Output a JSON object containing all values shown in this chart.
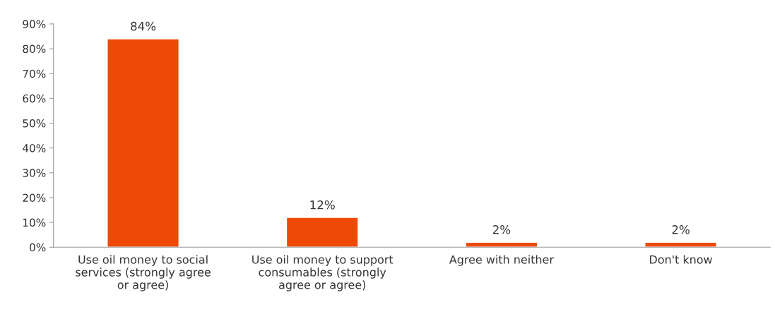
{
  "chart_data": {
    "type": "bar",
    "categories": [
      "Use oil money to social services (strongly agree or agree)",
      "Use oil money to support consumables (strongly agree or agree)",
      "Agree with neither",
      "Don't know"
    ],
    "values": [
      84,
      12,
      2,
      2
    ],
    "value_labels": [
      "84%",
      "12%",
      "2%",
      "2%"
    ],
    "color": "#ee4a06",
    "ylim": [
      0,
      90
    ],
    "yticks": [
      {
        "value": 0,
        "label": "0%"
      },
      {
        "value": 10,
        "label": "10%"
      },
      {
        "value": 20,
        "label": "20%"
      },
      {
        "value": 30,
        "label": "30%"
      },
      {
        "value": 40,
        "label": "40%"
      },
      {
        "value": 50,
        "label": "50%"
      },
      {
        "value": 60,
        "label": "60%"
      },
      {
        "value": 70,
        "label": "70%"
      },
      {
        "value": 80,
        "label": "80%"
      },
      {
        "value": 90,
        "label": "90%"
      }
    ],
    "grid": false,
    "legend": false
  }
}
